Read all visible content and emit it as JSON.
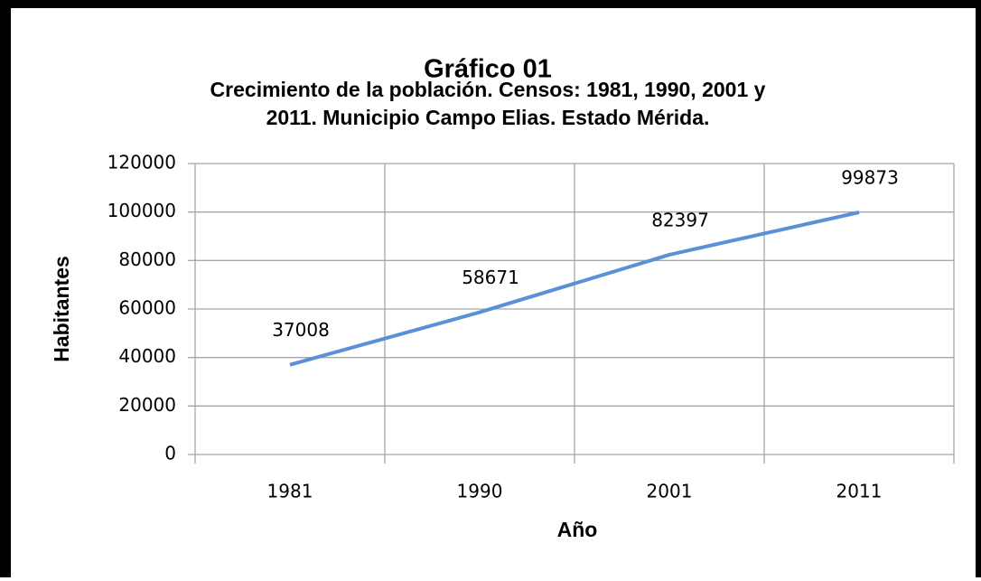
{
  "chart_data": {
    "type": "line",
    "title": "Gráfico 01",
    "subtitle": [
      "Crecimiento de la población. Censos: 1981, 1990, 2001 y",
      "2011. Municipio Campo Elias. Estado Mérida."
    ],
    "xlabel": "Año",
    "ylabel": "Habitantes",
    "categories": [
      "1981",
      "1990",
      "2001",
      "2011"
    ],
    "values": [
      37008,
      58671,
      82397,
      99873
    ],
    "color": "#5b8fd8",
    "ylim": [
      0,
      120000
    ],
    "yticks": [
      0,
      20000,
      40000,
      60000,
      80000,
      100000,
      120000
    ],
    "grid": true
  }
}
